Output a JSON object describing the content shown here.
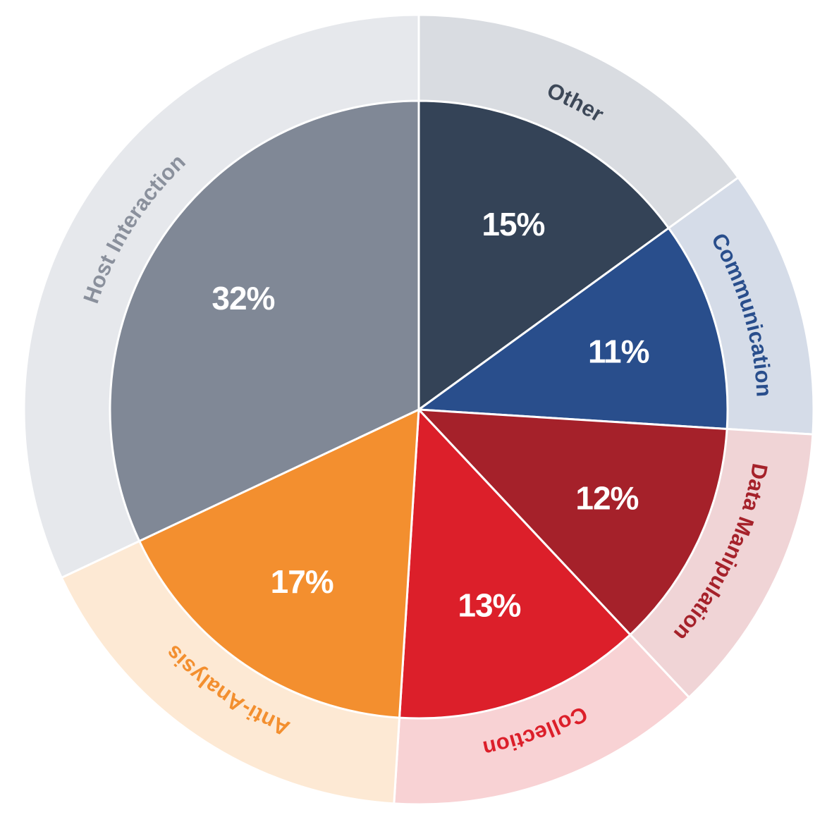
{
  "chart_data": {
    "type": "pie",
    "title": "",
    "slices": [
      {
        "label": "Other",
        "value": 15,
        "value_label": "15%",
        "color": "#344357",
        "ring_color": "#d9dce1",
        "label_color": "#3d4858"
      },
      {
        "label": "Communication",
        "value": 11,
        "value_label": "11%",
        "color": "#294e8c",
        "ring_color": "#d5dce8",
        "label_color": "#294e8c"
      },
      {
        "label": "Data Manipulation",
        "value": 12,
        "value_label": "12%",
        "color": "#a5212a",
        "ring_color": "#f0d4d6",
        "label_color": "#a5212a"
      },
      {
        "label": "Collection",
        "value": 13,
        "value_label": "13%",
        "color": "#dc1f2a",
        "ring_color": "#f8d2d4",
        "label_color": "#dc1f2a"
      },
      {
        "label": "Anti-Analysis",
        "value": 17,
        "value_label": "17%",
        "color": "#f38f2f",
        "ring_color": "#fde9d4",
        "label_color": "#f38f2f"
      },
      {
        "label": "Host Interaction",
        "value": 32,
        "value_label": "32%",
        "color": "#808896",
        "ring_color": "#e6e8ec",
        "label_color": "#8a909c"
      }
    ]
  }
}
